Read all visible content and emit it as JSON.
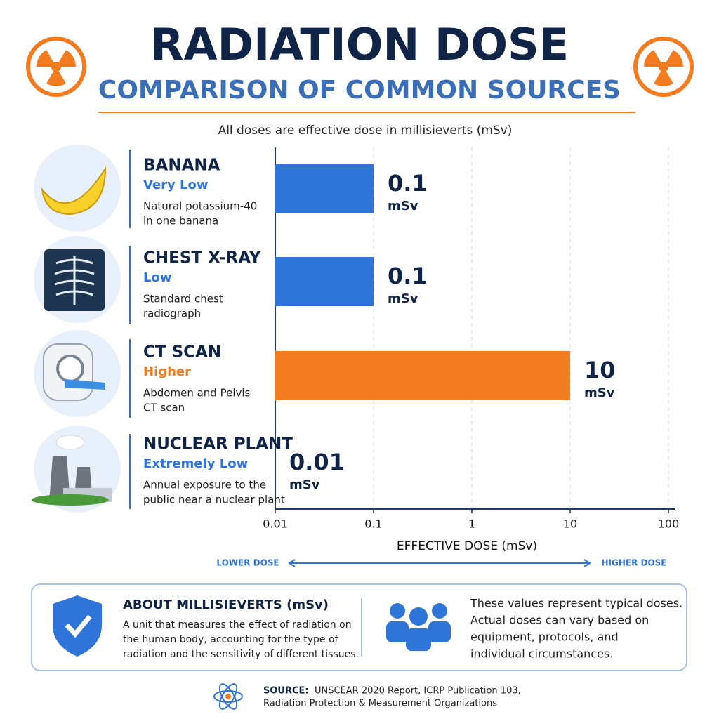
{
  "header": {
    "title": "RADIATION DOSE",
    "subtitle": "COMPARISON OF COMMON SOURCES",
    "note": "All doses are effective dose in millisieverts (mSv)"
  },
  "chart_data": {
    "type": "bar",
    "orientation": "horizontal",
    "categories": [
      "BANANA",
      "CHEST X-RAY",
      "CT SCAN",
      "NUCLEAR PLANT"
    ],
    "levels": [
      "Very Low",
      "Low",
      "Higher",
      "Extremely Low"
    ],
    "descriptions": [
      [
        "Natural potassium-40",
        "in one banana"
      ],
      [
        "Standard chest",
        "radiograph"
      ],
      [
        "Abdomen and Pelvis",
        "CT scan"
      ],
      [
        "Annual exposure to the",
        "public near a nuclear plant"
      ]
    ],
    "colors": [
      "#2f74d8",
      "#2f74d8",
      "#f47c20",
      "#2f74d8"
    ],
    "values": [
      0.1,
      0.1,
      10,
      0.01
    ],
    "value_unit": "mSv",
    "xlim": [
      0.01,
      100
    ],
    "xticks": [
      0.01,
      0.1,
      1,
      10,
      100
    ],
    "xlog": true,
    "grid": true,
    "xlabel": "EFFECTIVE DOSE (mSv)",
    "scale_labels": {
      "low": "LOWER DOSE",
      "high": "HIGHER DOSE"
    }
  },
  "info": {
    "title": "ABOUT MILLISIEVERTS (mSv)",
    "body": [
      "A unit that measures the effect of radiation on",
      "the human body, accounting for the type of",
      "radiation and the sensitivity of different tissues."
    ],
    "notice": [
      "These values represent typical doses.",
      "Actual doses can vary based on",
      "equipment, protocols, and",
      "individual circumstances."
    ]
  },
  "source": {
    "label": "SOURCE:",
    "lines": [
      "UNSCEAR 2020 Report, ICRP Publication 103,",
      "Radiation Protection & Measurement Organizations"
    ]
  }
}
